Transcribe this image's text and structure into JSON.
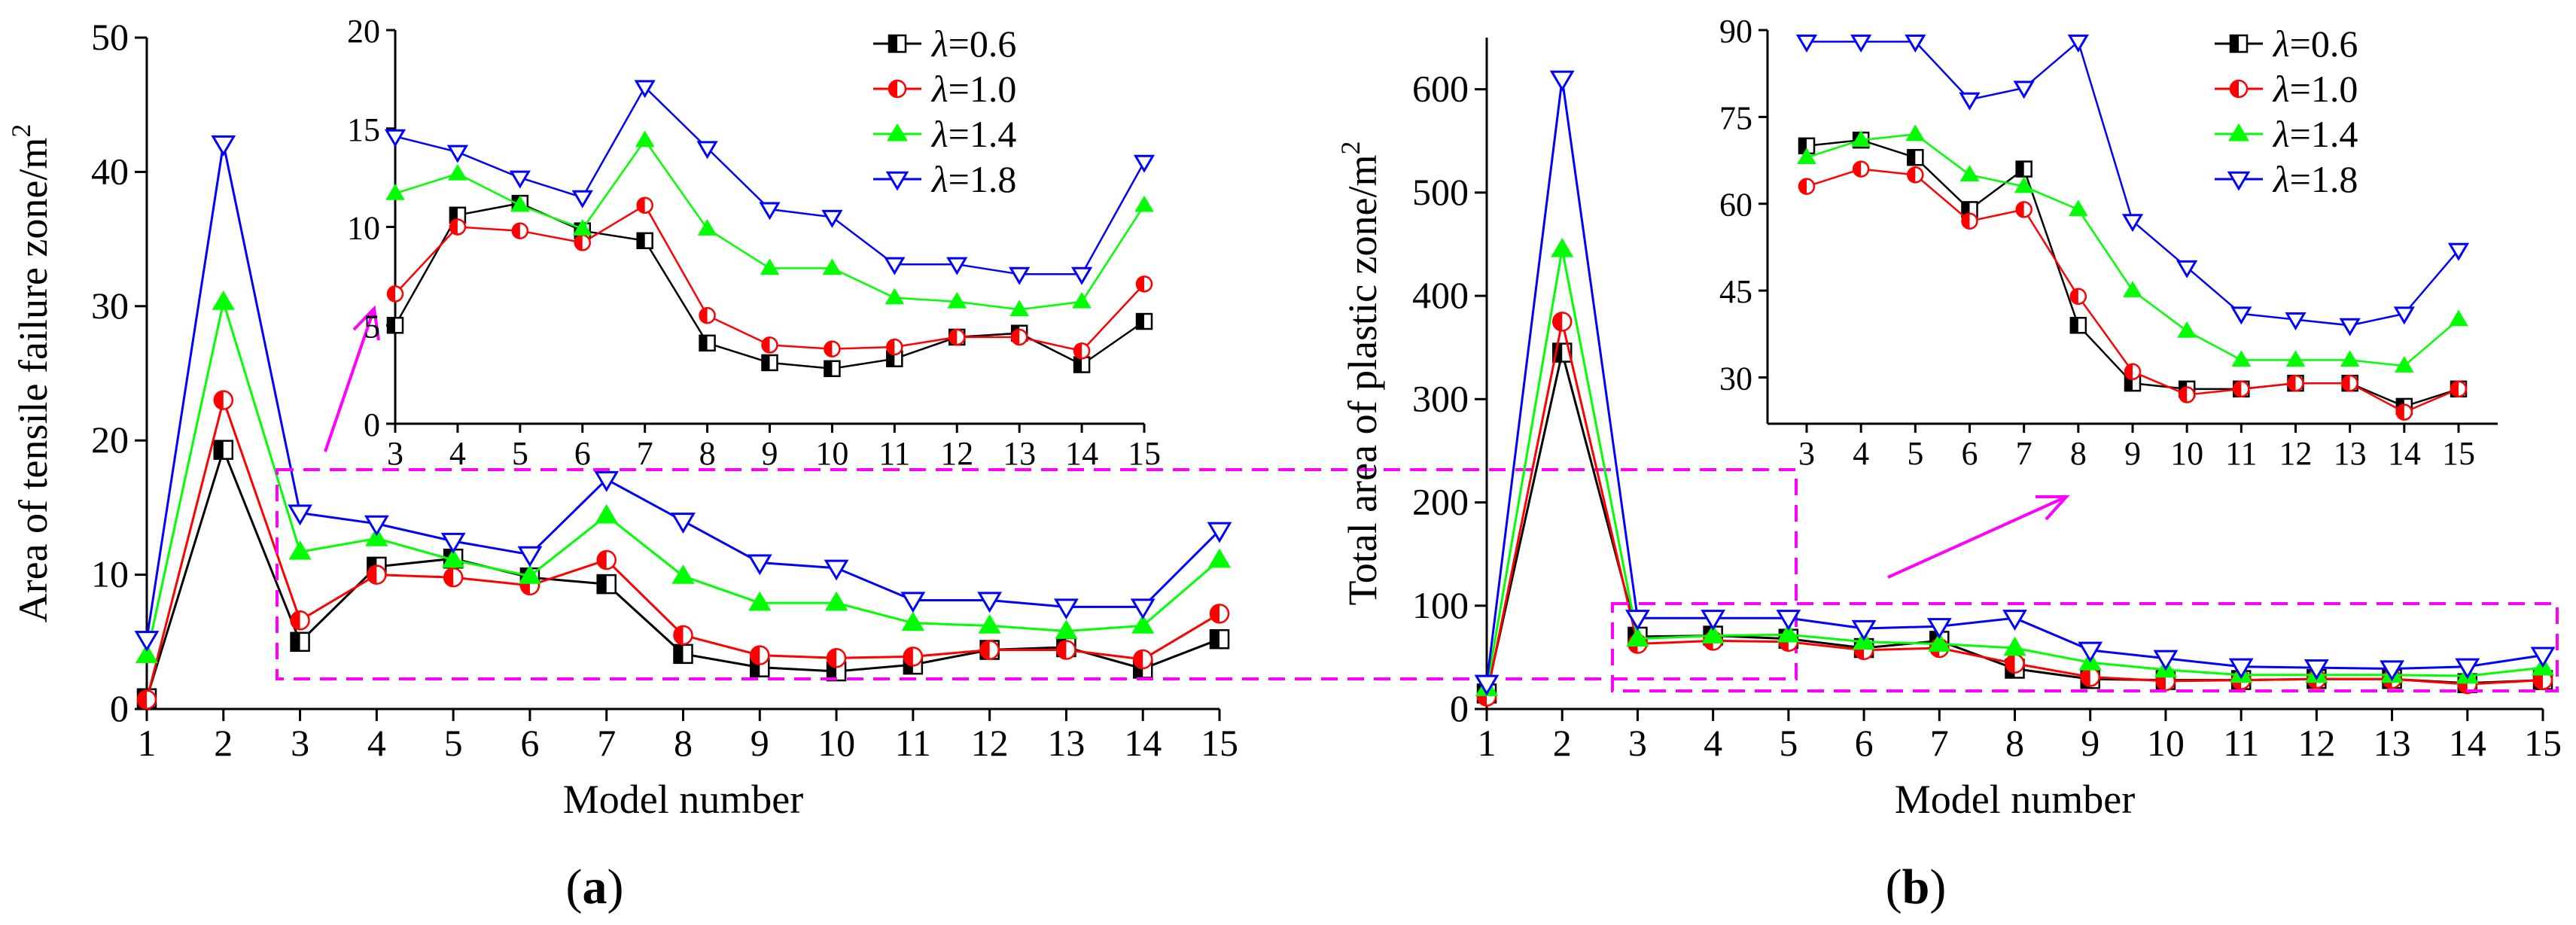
{
  "colors": {
    "l06": "#000000",
    "l10": "#ff0000",
    "l14": "#00ff00",
    "l18": "#0000ff",
    "highlight": "#ff00ff"
  },
  "legend": [
    {
      "lambda": "λ",
      "eq": "=0.6"
    },
    {
      "lambda": "λ",
      "eq": "=1.0"
    },
    {
      "lambda": "λ",
      "eq": "=1.4"
    },
    {
      "lambda": "λ",
      "eq": "=1.8"
    }
  ],
  "panels": {
    "a": {
      "label_open": "(",
      "label_letter": "a",
      "label_close": ")"
    },
    "b": {
      "label_open": "(",
      "label_letter": "b",
      "label_close": ")"
    }
  },
  "chart_data": [
    {
      "id": "a-main",
      "type": "line",
      "xlabel": "Model number",
      "ylabel_base": "Area of tensile  failure zone/m",
      "ylabel_sup": "2",
      "x": [
        1,
        2,
        3,
        4,
        5,
        6,
        7,
        8,
        9,
        10,
        11,
        12,
        13,
        14,
        15
      ],
      "xticks": [
        "1",
        "2",
        "3",
        "4",
        "5",
        "6",
        "7",
        "8",
        "9",
        "10",
        "11",
        "12",
        "13",
        "14",
        "15"
      ],
      "ylim": [
        0,
        50
      ],
      "yticks": [
        "0",
        "10",
        "20",
        "30",
        "40",
        "50"
      ],
      "series": [
        {
          "name": "λ=0.6",
          "values": [
            0.8,
            19.3,
            5.0,
            10.6,
            11.2,
            9.8,
            9.3,
            4.1,
            3.1,
            2.8,
            3.3,
            4.4,
            4.6,
            3.0,
            5.2
          ]
        },
        {
          "name": "λ=1.0",
          "values": [
            0.7,
            23.0,
            6.6,
            10.0,
            9.8,
            9.2,
            11.1,
            5.5,
            4.0,
            3.8,
            3.9,
            4.4,
            4.4,
            3.7,
            7.1
          ]
        },
        {
          "name": "λ=1.4",
          "values": [
            4.0,
            30.3,
            11.7,
            12.7,
            11.1,
            9.9,
            14.4,
            9.9,
            7.9,
            7.9,
            6.4,
            6.2,
            5.8,
            6.2,
            11.1
          ]
        },
        {
          "name": "λ=1.8",
          "values": [
            5.2,
            42.1,
            14.6,
            13.8,
            12.5,
            11.5,
            17.1,
            14.0,
            10.9,
            10.5,
            8.1,
            8.1,
            7.6,
            7.6,
            13.3
          ]
        }
      ]
    },
    {
      "id": "a-inset",
      "type": "line",
      "x": [
        3,
        4,
        5,
        6,
        7,
        8,
        9,
        10,
        11,
        12,
        13,
        14,
        15
      ],
      "xticks": [
        "3",
        "4",
        "5",
        "6",
        "7",
        "8",
        "9",
        "10",
        "11",
        "12",
        "13",
        "14",
        "15"
      ],
      "ylim": [
        0,
        20
      ],
      "yticks": [
        "0",
        "5",
        "10",
        "15",
        "20"
      ],
      "series": [
        {
          "name": "λ=0.6",
          "values": [
            5.0,
            10.6,
            11.2,
            9.8,
            9.3,
            4.1,
            3.1,
            2.8,
            3.3,
            4.4,
            4.6,
            3.0,
            5.2
          ]
        },
        {
          "name": "λ=1.0",
          "values": [
            6.6,
            10.0,
            9.8,
            9.2,
            11.1,
            5.5,
            4.0,
            3.8,
            3.9,
            4.4,
            4.4,
            3.7,
            7.1
          ]
        },
        {
          "name": "λ=1.4",
          "values": [
            11.7,
            12.7,
            11.1,
            9.9,
            14.4,
            9.9,
            7.9,
            7.9,
            6.4,
            6.2,
            5.8,
            6.2,
            11.1
          ]
        },
        {
          "name": "λ=1.8",
          "values": [
            14.6,
            13.8,
            12.5,
            11.5,
            17.1,
            14.0,
            10.9,
            10.5,
            8.1,
            8.1,
            7.6,
            7.6,
            13.3
          ]
        }
      ]
    },
    {
      "id": "b-main",
      "type": "line",
      "xlabel": "Model number",
      "ylabel_base": "Total area of plastic zone/m",
      "ylabel_sup": "2",
      "x": [
        1,
        2,
        3,
        4,
        5,
        6,
        7,
        8,
        9,
        10,
        11,
        12,
        13,
        14,
        15
      ],
      "xticks": [
        "1",
        "2",
        "3",
        "4",
        "5",
        "6",
        "7",
        "8",
        "9",
        "10",
        "11",
        "12",
        "13",
        "14",
        "15"
      ],
      "ylim": [
        0,
        650
      ],
      "yticks": [
        "0",
        "100",
        "200",
        "300",
        "400",
        "500",
        "600"
      ],
      "series": [
        {
          "name": "λ=0.6",
          "values": [
            15,
            345,
            70,
            71,
            68,
            59,
            66,
            39,
            29,
            28,
            28,
            29,
            29,
            25,
            28
          ]
        },
        {
          "name": "λ=1.0",
          "values": [
            12,
            375,
            63,
            66,
            65,
            57,
            59,
            44,
            31,
            27,
            28,
            29,
            29,
            24,
            28
          ]
        },
        {
          "name": "λ=1.4",
          "values": [
            20,
            445,
            68,
            71,
            72,
            65,
            63,
            59,
            45,
            38,
            33,
            33,
            33,
            32,
            40
          ]
        },
        {
          "name": "λ=1.8",
          "values": [
            25,
            610,
            88,
            88,
            88,
            78,
            80,
            88,
            57,
            49,
            41,
            40,
            39,
            41,
            52
          ]
        }
      ]
    },
    {
      "id": "b-inset",
      "type": "line",
      "x": [
        3,
        4,
        5,
        6,
        7,
        8,
        9,
        10,
        11,
        12,
        13,
        14,
        15
      ],
      "xticks": [
        "3",
        "4",
        "5",
        "6",
        "7",
        "8",
        "9",
        "10",
        "11",
        "12",
        "13",
        "14",
        "15"
      ],
      "ylim": [
        22,
        90
      ],
      "ytickvals": [
        30,
        45,
        60,
        75,
        90
      ],
      "yticks": [
        "30",
        "45",
        "60",
        "75",
        "90"
      ],
      "series": [
        {
          "name": "λ=0.6",
          "values": [
            70,
            71,
            68,
            59,
            66,
            39,
            29,
            28,
            28,
            29,
            29,
            25,
            28
          ]
        },
        {
          "name": "λ=1.0",
          "values": [
            63,
            66,
            65,
            57,
            59,
            44,
            31,
            27,
            28,
            29,
            29,
            24,
            28
          ]
        },
        {
          "name": "λ=1.4",
          "values": [
            68,
            71,
            72,
            65,
            63,
            59,
            45,
            38,
            33,
            33,
            33,
            32,
            40
          ]
        },
        {
          "name": "λ=1.8",
          "values": [
            88,
            88,
            88,
            78,
            80,
            88,
            57,
            49,
            41,
            40,
            39,
            41,
            52
          ]
        }
      ]
    }
  ]
}
